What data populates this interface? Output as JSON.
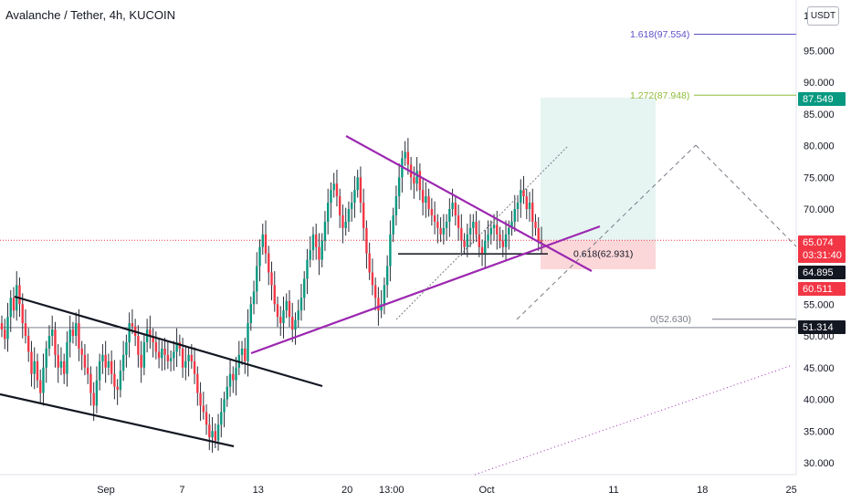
{
  "chart_data": {
    "type": "candlestick",
    "title": "Avalanche / Tether, 4h, KUCOIN",
    "currency_button": "USDT",
    "y_axis": {
      "range": [
        28.5,
        104
      ],
      "ticks": [
        {
          "value": 95,
          "label": "95.000"
        },
        {
          "value": 90,
          "label": "90.000"
        },
        {
          "value": 85,
          "label": "85.000"
        },
        {
          "value": 80,
          "label": "80.000"
        },
        {
          "value": 75,
          "label": "75.000"
        },
        {
          "value": 70,
          "label": "70.000"
        },
        {
          "value": 55,
          "label": "55.000"
        },
        {
          "value": 50,
          "label": "50.000"
        },
        {
          "value": 45,
          "label": "45.000"
        },
        {
          "value": 40,
          "label": "40.000"
        },
        {
          "value": 35,
          "label": "35.000"
        },
        {
          "value": 30,
          "label": "30.000"
        }
      ],
      "partial_top_label": "1"
    },
    "x_axis": {
      "ticks": [
        {
          "label": "Sep",
          "day": 1
        },
        {
          "label": "7",
          "day": 7
        },
        {
          "label": "13",
          "day": 13
        },
        {
          "label": "20",
          "day": 20
        },
        {
          "label": "13:00",
          "day": 23.5
        },
        {
          "label": "Oct",
          "day": 31
        },
        {
          "label": "11",
          "day": 41
        },
        {
          "label": "18",
          "day": 48
        },
        {
          "label": "25",
          "day": 55
        }
      ]
    },
    "price_badges": [
      {
        "label": "87.549",
        "value": 87.549,
        "color": "#089981"
      },
      {
        "label": "65.074",
        "sub": "03:31:40",
        "value": 65.074,
        "color": "#f23645"
      },
      {
        "label": "64.895",
        "value": 64.895,
        "color": "#131722"
      },
      {
        "label": "60.511",
        "value": 60.511,
        "color": "#f23645"
      },
      {
        "label": "51.314",
        "value": 51.314,
        "color": "#131722"
      }
    ],
    "fib_levels": [
      {
        "label": "1.618(97.554)",
        "value": 97.554,
        "color": "#5b4fc7"
      },
      {
        "label": "1.272(87.948)",
        "value": 87.948,
        "color": "#8fbc3a"
      },
      {
        "label": "0.618(62.931)",
        "value": 62.931,
        "color": "#131722"
      },
      {
        "label": "0(52.630)",
        "value": 52.63,
        "color": "#787b86"
      }
    ],
    "position": {
      "entry": 65.074,
      "target": 87.549,
      "stop": 60.511
    },
    "candles_close": [
      51,
      49.5,
      53,
      56,
      54,
      58,
      55,
      52,
      50,
      47.5,
      44,
      46,
      43,
      41,
      45,
      48,
      50,
      51,
      47,
      45,
      46,
      44,
      49,
      51,
      50,
      52,
      48,
      47,
      45,
      44,
      41,
      39,
      43,
      46,
      47,
      45,
      46,
      44,
      42,
      41.5,
      44.5,
      47,
      49,
      52,
      51.5,
      50,
      47,
      45,
      49,
      51,
      50,
      49,
      47.5,
      46.5,
      48,
      47,
      46,
      46.5,
      47.5,
      49,
      48,
      45,
      46,
      47,
      46,
      44,
      41,
      39,
      38,
      36,
      34,
      35,
      33.5,
      36,
      38,
      40,
      42,
      44,
      43,
      45,
      47,
      48,
      46,
      52,
      55,
      57,
      61,
      64,
      66,
      63,
      60,
      58,
      55,
      53,
      52,
      54,
      55.5,
      53,
      51,
      52.5,
      54,
      56,
      59,
      62,
      63.5,
      66,
      64,
      62,
      65,
      68,
      71,
      73,
      74,
      72,
      69,
      67,
      68,
      70,
      71,
      73,
      75,
      71,
      67,
      63,
      60,
      58,
      56,
      54,
      55,
      58,
      61,
      66,
      69,
      72,
      75,
      78,
      79,
      77,
      75,
      74,
      76,
      73,
      71,
      72,
      70,
      69,
      68,
      67,
      66,
      67,
      68,
      70,
      71,
      69,
      67,
      65,
      64,
      66,
      67,
      68,
      66,
      64,
      63,
      65,
      66,
      67,
      67.5,
      66,
      65,
      64,
      66,
      67,
      68,
      70,
      71,
      73,
      72,
      70,
      71,
      68,
      67,
      65,
      64.9
    ]
  }
}
